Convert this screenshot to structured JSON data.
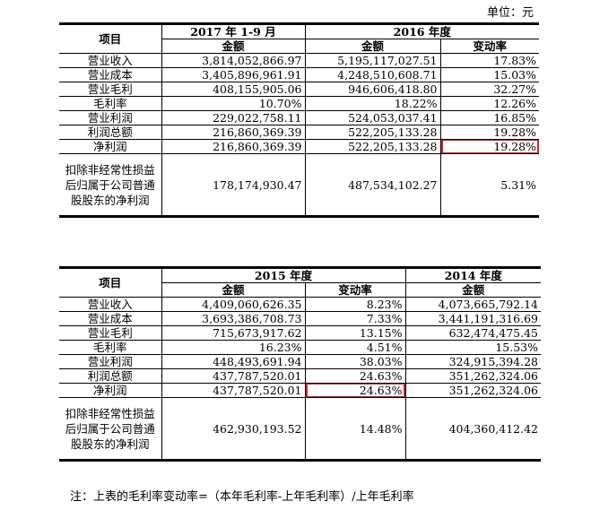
{
  "unit_label": "单位：元",
  "table1": {
    "col_item": "项目",
    "period1": "2017 年 1-9 月",
    "period2": "2016 年度",
    "amount": "金额",
    "change": "变动率",
    "rows": [
      {
        "label": "营业收入",
        "a": "3,814,052,866.97",
        "b": "5,195,117,027.51",
        "c": "17.83%"
      },
      {
        "label": "营业成本",
        "a": "3,405,896,961.91",
        "b": "4,248,510,608.71",
        "c": "15.03%"
      },
      {
        "label": "营业毛利",
        "a": "408,155,905.06",
        "b": "946,606,418.80",
        "c": "32.27%"
      },
      {
        "label": "毛利率",
        "a": "10.70%",
        "b": "18.22%",
        "c": "12.26%"
      },
      {
        "label": "营业利润",
        "a": "229,022,758.11",
        "b": "524,053,037.41",
        "c": "16.85%"
      },
      {
        "label": "利润总额",
        "a": "216,860,369.39",
        "b": "522,205,133.28",
        "c": "19.28%"
      },
      {
        "label": "净利润",
        "a": "216,860,369.39",
        "b": "522,205,133.28",
        "c": "19.28%"
      },
      {
        "label": "扣除非经常性损益后归属于公司普通股股东的净利润",
        "a": "178,174,930.47",
        "b": "487,534,102.27",
        "c": "5.31%"
      }
    ]
  },
  "table2": {
    "col_item": "项目",
    "period1": "2015 年度",
    "period2": "2014 年度",
    "amount": "金额",
    "change": "变动率",
    "rows": [
      {
        "label": "营业收入",
        "a": "4,409,060,626.35",
        "c": "8.23%",
        "b": "4,073,665,792.14"
      },
      {
        "label": "营业成本",
        "a": "3,693,386,708.73",
        "c": "7.33%",
        "b": "3,441,191,316.69"
      },
      {
        "label": "营业毛利",
        "a": "715,673,917.62",
        "c": "13.15%",
        "b": "632,474,475.45"
      },
      {
        "label": "毛利率",
        "a": "16.23%",
        "c": "4.51%",
        "b": "15.53%"
      },
      {
        "label": "营业利润",
        "a": "448,493,691.94",
        "c": "38.03%",
        "b": "324,915,394.28"
      },
      {
        "label": "利润总额",
        "a": "437,787,520.01",
        "c": "24.63%",
        "b": "351,262,324.06"
      },
      {
        "label": "净利润",
        "a": "437,787,520.01",
        "c": "24.63%",
        "b": "351,262,324.06"
      },
      {
        "label": "扣除非经常性损益后归属于公司普通股股东的净利润",
        "a": "462,930,193.52",
        "c": "14.48%",
        "b": "404,360,412.42"
      }
    ]
  },
  "note": "注：上表的毛利率变动率=（本年毛利率-上年毛利率）/上年毛利率",
  "highlight_color": "#d0212a"
}
